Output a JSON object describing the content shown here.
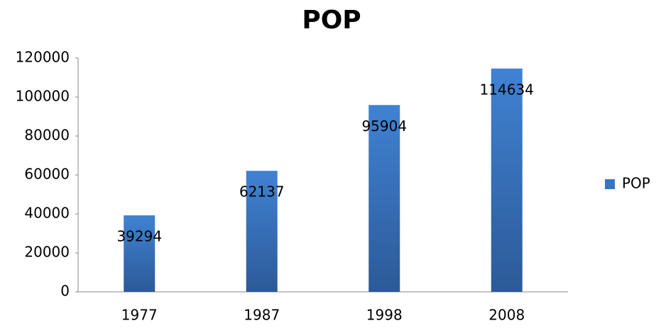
{
  "chart_data": {
    "type": "bar",
    "title": "POP",
    "categories": [
      "1977",
      "1987",
      "1998",
      "2008"
    ],
    "series": [
      {
        "name": "POP",
        "color": "#3a74c4",
        "values": [
          39294,
          62137,
          95904,
          114634
        ]
      }
    ],
    "ylim": [
      0,
      120000
    ],
    "yticks": [
      0,
      20000,
      40000,
      60000,
      80000,
      100000,
      120000
    ],
    "grid": false,
    "legend": "right",
    "data_labels": true
  }
}
